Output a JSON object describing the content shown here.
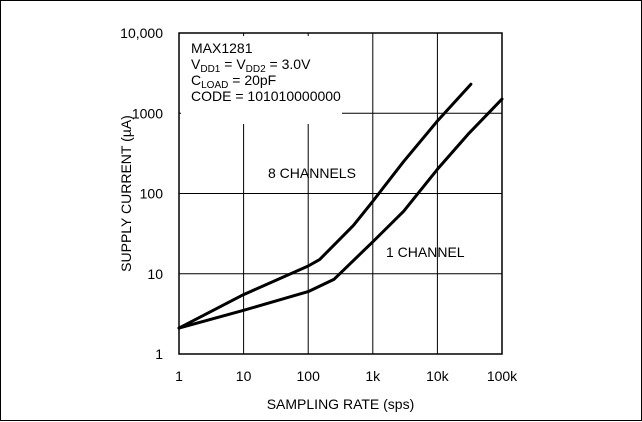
{
  "chart_data": {
    "type": "line",
    "title": "",
    "xlabel": "SAMPLING RATE (sps)",
    "ylabel": "SUPPLY CURRENT (µA)",
    "x_scale": "log",
    "y_scale": "log",
    "xlim": [
      1,
      100000
    ],
    "ylim": [
      1,
      10000
    ],
    "grid": true,
    "x_ticks": [
      {
        "value": 1,
        "label": "1"
      },
      {
        "value": 10,
        "label": "10"
      },
      {
        "value": 100,
        "label": "100"
      },
      {
        "value": 1000,
        "label": "1k"
      },
      {
        "value": 10000,
        "label": "10k"
      },
      {
        "value": 100000,
        "label": "100k"
      }
    ],
    "y_ticks": [
      {
        "value": 1,
        "label": "1"
      },
      {
        "value": 10,
        "label": "10"
      },
      {
        "value": 100,
        "label": "100"
      },
      {
        "value": 1000,
        "label": "1000"
      },
      {
        "value": 10000,
        "label": "10,000"
      }
    ],
    "annotations": [
      {
        "id": "part",
        "text": "MAX1281"
      },
      {
        "id": "vdd",
        "parts": [
          {
            "t": "V",
            "sub": false
          },
          {
            "t": "DD1",
            "sub": true
          },
          {
            "t": " = V",
            "sub": false
          },
          {
            "t": "DD2",
            "sub": true
          },
          {
            "t": " = 3.0V",
            "sub": false
          }
        ]
      },
      {
        "id": "cload",
        "parts": [
          {
            "t": "C",
            "sub": false
          },
          {
            "t": "LOAD",
            "sub": true
          },
          {
            "t": " = 20pF",
            "sub": false
          }
        ]
      },
      {
        "id": "code",
        "text": "CODE = 101010000000"
      }
    ],
    "series": [
      {
        "name": "8 CHANNELS",
        "x": [
          1,
          10,
          100,
          150,
          500,
          1000,
          3000,
          10000,
          33000
        ],
        "y": [
          2.1,
          5.5,
          12.5,
          15,
          40,
          80,
          250,
          800,
          2300
        ]
      },
      {
        "name": "1 CHANNEL",
        "x": [
          1,
          10,
          100,
          250,
          1000,
          3000,
          10000,
          30000,
          100000
        ],
        "y": [
          2.1,
          3.5,
          6,
          8.5,
          25,
          60,
          200,
          550,
          1500
        ]
      }
    ]
  }
}
